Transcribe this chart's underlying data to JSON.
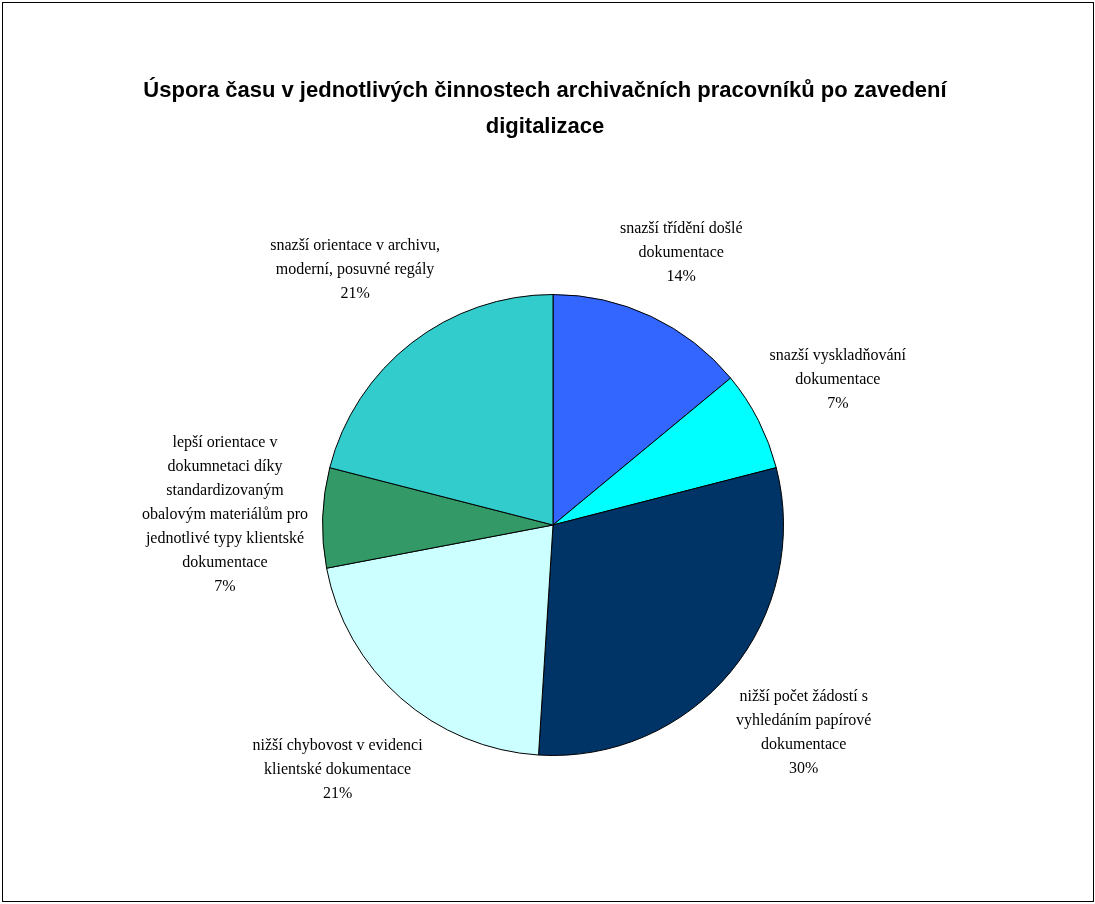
{
  "chart_data": {
    "type": "pie",
    "title": "Úspora času v jednotlivých činnostech archivačních pracovníků po zavedení digitalizace",
    "categories": [
      "snazší třídění došlé dokumentace",
      "snazší vyskladňování dokumentace",
      "nižší počet žádostí s vyhledáním papírové dokumentace",
      "nižší chybovost v evidenci klientské dokumentace",
      "lepší orientace v dokumnetaci díky standardizovaným obalovým materiálům pro jednotlivé typy klientské dokumentace",
      "snazší orientace v archivu, moderní, posuvné regály"
    ],
    "values": [
      14,
      7,
      30,
      21,
      7,
      21
    ],
    "value_labels": [
      "14%",
      "7%",
      "30%",
      "21%",
      "7%",
      "21%"
    ],
    "colors": [
      "#3366ff",
      "#00ffff",
      "#003366",
      "#ccffff",
      "#339966",
      "#33cccc"
    ],
    "legend": false
  }
}
